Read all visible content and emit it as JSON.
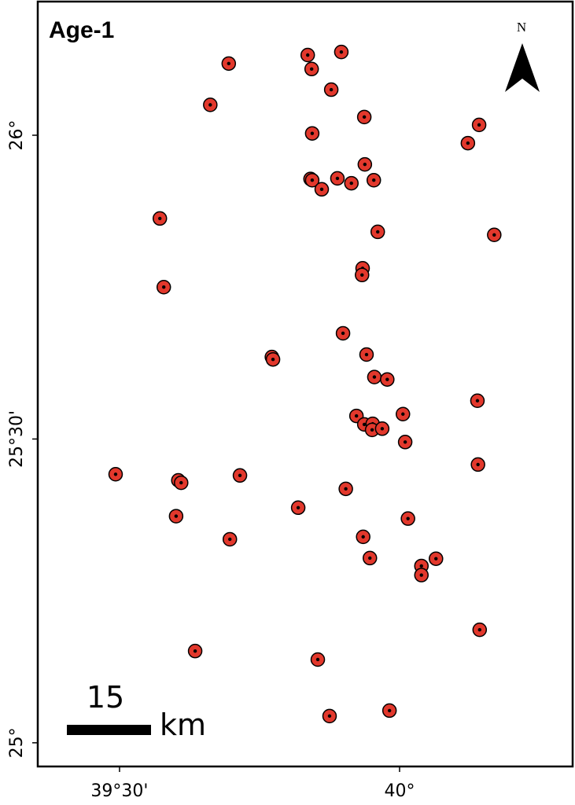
{
  "chart_data": {
    "type": "scatter",
    "title": "Age-1",
    "north_label": "N",
    "scale_bar_label": "15",
    "scale_bar_unit": "km",
    "xlim": [
      39.354,
      40.309
    ],
    "ylim": [
      24.961,
      26.22
    ],
    "xticks": [
      {
        "value": 39.5,
        "label": "39°30'"
      },
      {
        "value": 40,
        "label": "40°"
      }
    ],
    "yticks": [
      {
        "value": 25,
        "label": "25°"
      },
      {
        "value": 25.5,
        "label": "25°30'"
      },
      {
        "value": 26,
        "label": "26°"
      }
    ],
    "series": [
      {
        "color": "#e2382c",
        "x": [
          39.695,
          39.836,
          39.896,
          39.843,
          39.662,
          39.878,
          39.937,
          39.844,
          40.142,
          40.122,
          39.938,
          39.841,
          39.844,
          39.889,
          39.914,
          39.954,
          39.861,
          39.572,
          39.961,
          40.169,
          39.934,
          39.933,
          39.579,
          39.899,
          39.772,
          39.774,
          39.941,
          39.955,
          39.978,
          40.139,
          40.006,
          39.923,
          39.937,
          39.952,
          39.951,
          39.969,
          40.01,
          39.493,
          39.605,
          39.61,
          39.715,
          40.14,
          39.904,
          39.819,
          39.601,
          40.015,
          39.697,
          39.935,
          39.947,
          40.039,
          40.065,
          40.039,
          40.143,
          39.635,
          39.854,
          39.875,
          39.982
        ],
        "values": [
          26.118,
          26.132,
          26.137,
          26.109,
          26.05,
          26.075,
          26.03,
          26.003,
          26.017,
          25.987,
          25.952,
          25.928,
          25.926,
          25.929,
          25.921,
          25.926,
          25.911,
          25.863,
          25.841,
          25.836,
          25.781,
          25.77,
          25.75,
          25.674,
          25.635,
          25.631,
          25.639,
          25.602,
          25.598,
          25.563,
          25.541,
          25.538,
          25.524,
          25.525,
          25.515,
          25.517,
          25.495,
          25.442,
          25.432,
          25.428,
          25.44,
          25.458,
          25.418,
          25.387,
          25.373,
          25.369,
          25.335,
          25.339,
          25.304,
          25.291,
          25.303,
          25.276,
          25.186,
          25.151,
          25.137,
          25.044,
          25.053
        ]
      }
    ]
  }
}
